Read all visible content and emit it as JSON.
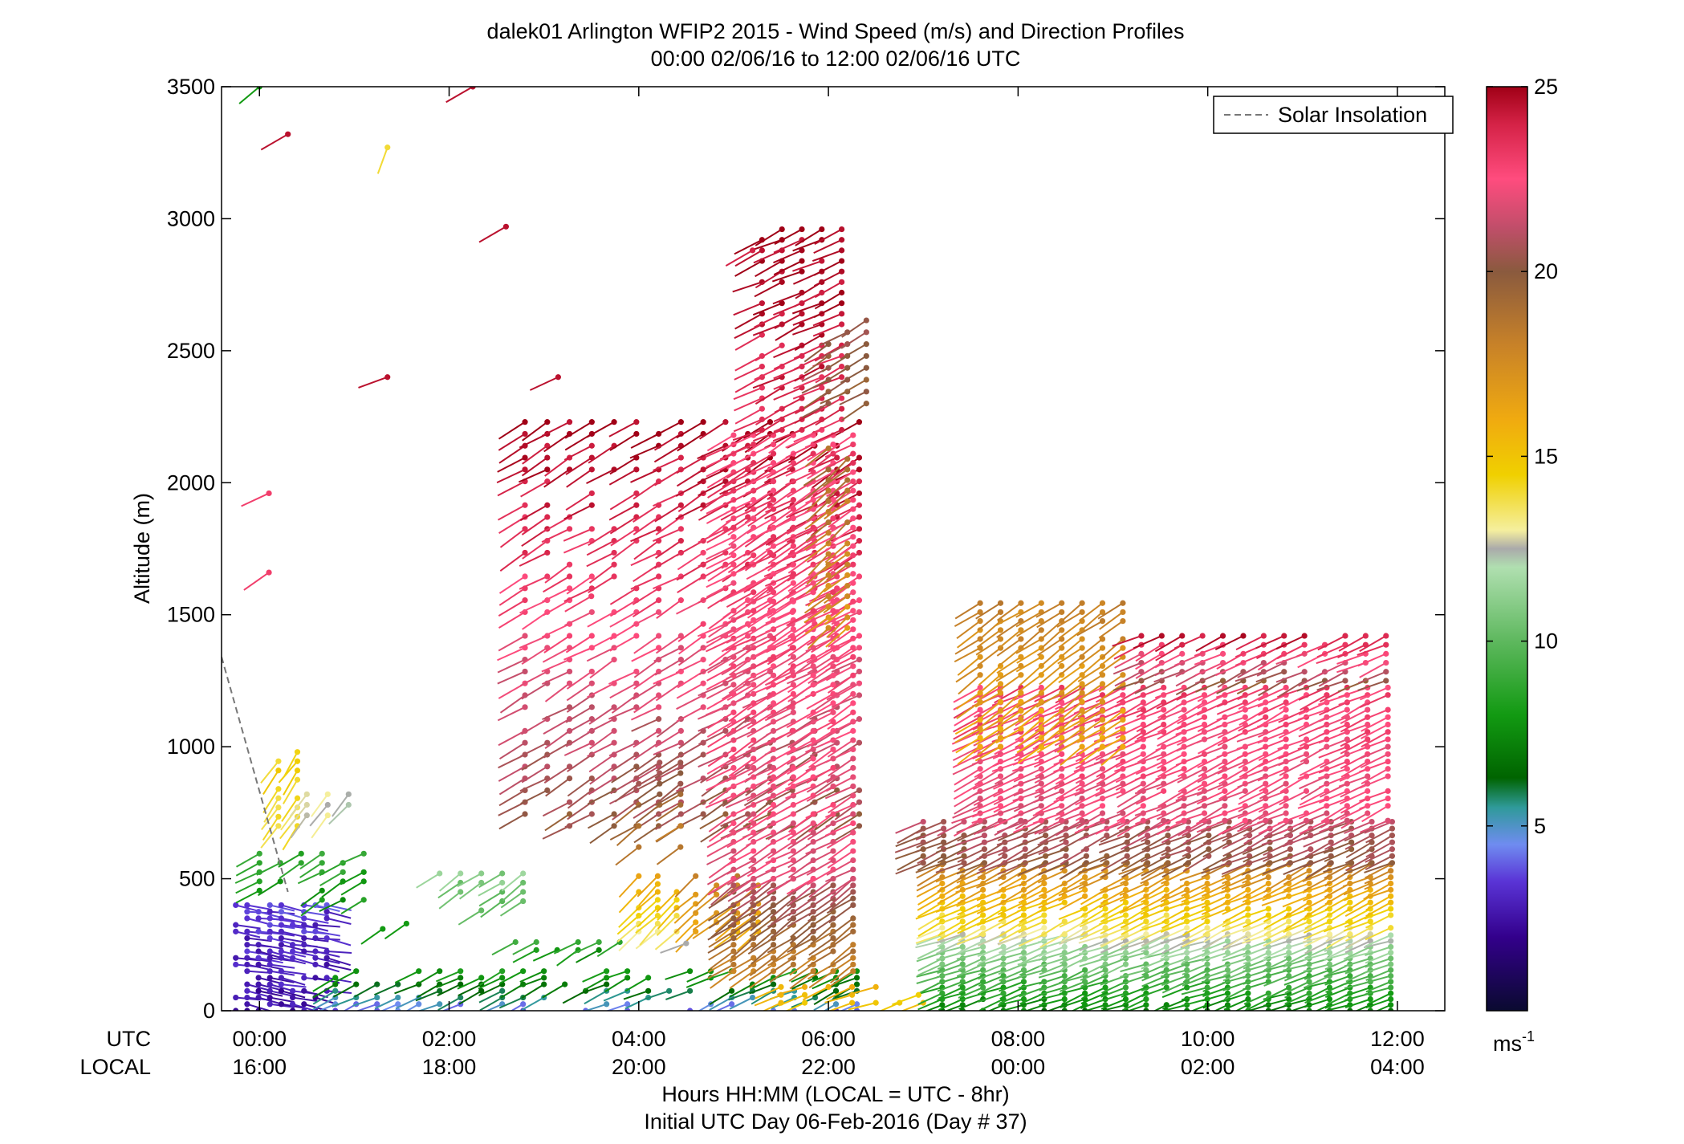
{
  "chart_data": {
    "type": "wind-barb profile",
    "title_line1": "dalek01 Arlington WFIP2 2015 - Wind Speed (m/s) and Direction Profiles",
    "title_line2": "00:00 02/06/16 to 12:00 02/06/16  UTC",
    "ylabel": "Altitude (m)",
    "ylim": [
      0,
      3500
    ],
    "yticks": [
      "0",
      "500",
      "1000",
      "1500",
      "2000",
      "2500",
      "3000",
      "3500"
    ],
    "ytick_values": [
      0,
      500,
      1000,
      1500,
      2000,
      2500,
      3000,
      3500
    ],
    "xlim_hours": [
      -0.4,
      12.5
    ],
    "xtick_values": [
      0,
      2,
      4,
      6,
      8,
      10,
      12
    ],
    "xticks_utc": [
      "00:00",
      "02:00",
      "04:00",
      "06:00",
      "08:00",
      "10:00",
      "12:00"
    ],
    "xticks_local": [
      "16:00",
      "18:00",
      "20:00",
      "22:00",
      "00:00",
      "02:00",
      "04:00"
    ],
    "row_label_utc": "UTC",
    "row_label_local": "LOCAL",
    "xlabel_line1": "Hours HH:MM  (LOCAL = UTC - 8hr)",
    "xlabel_line2": "Initial UTC Day 06-Feb-2016 (Day # 37)",
    "legend": {
      "label": "Solar Insolation",
      "style": "dashed gray",
      "placement": "top-right"
    },
    "colorbar": {
      "min": 0,
      "max": 25,
      "ticks": [
        "5",
        "10",
        "15",
        "20",
        "25"
      ],
      "tick_values": [
        5,
        10,
        15,
        20,
        25
      ],
      "unit_base": "ms",
      "unit_exp": "-1",
      "stops": [
        {
          "v": 0,
          "c": "#0a0a30"
        },
        {
          "v": 2,
          "c": "#33008c"
        },
        {
          "v": 3.5,
          "c": "#5a34d6"
        },
        {
          "v": 4.5,
          "c": "#6f8cf0"
        },
        {
          "v": 5.5,
          "c": "#2f9a9a"
        },
        {
          "v": 6.3,
          "c": "#006400"
        },
        {
          "v": 8,
          "c": "#129a12"
        },
        {
          "v": 10,
          "c": "#5eb85e"
        },
        {
          "v": 12,
          "c": "#b0dfb0"
        },
        {
          "v": 12.5,
          "c": "#aaaaaa"
        },
        {
          "v": 13,
          "c": "#f5ef9e"
        },
        {
          "v": 14.5,
          "c": "#f0d000"
        },
        {
          "v": 16,
          "c": "#f0aa10"
        },
        {
          "v": 18,
          "c": "#c88228"
        },
        {
          "v": 20,
          "c": "#8a5a3e"
        },
        {
          "v": 21.2,
          "c": "#c14e6a"
        },
        {
          "v": 22.5,
          "c": "#ff4c7e"
        },
        {
          "v": 24,
          "c": "#d42246"
        },
        {
          "v": 25,
          "c": "#a00016"
        }
      ]
    },
    "solar_insolation_line": {
      "points": [
        [
          -0.4,
          1340
        ],
        [
          0.3,
          450
        ]
      ]
    },
    "wind_segments": [
      {
        "t0": -0.25,
        "t1": 0.8,
        "h0": 0,
        "h1": 400,
        "dh": 25,
        "dt": 0.12,
        "v0": 2.5,
        "v1": 3.5,
        "dir": 100,
        "density": 0.7
      },
      {
        "t0": 0.8,
        "t1": 6.3,
        "h0": 0,
        "h1": 150,
        "dh": 25,
        "dt": 0.22,
        "v0": 4,
        "v1": 8,
        "dir": 245,
        "density": 0.6
      },
      {
        "t0": 0.0,
        "t1": 1.2,
        "h0": 420,
        "h1": 620,
        "dh": 35,
        "dt": 0.22,
        "v0": 8,
        "v1": 9,
        "dir": 240,
        "density": 0.5
      },
      {
        "t0": 0.2,
        "t1": 0.4,
        "h0": 700,
        "h1": 1010,
        "dh": 35,
        "dt": 0.2,
        "v0": 14,
        "v1": 14.5,
        "dir": 215,
        "density": 0.9
      },
      {
        "t0": 0.5,
        "t1": 1.1,
        "h0": 740,
        "h1": 830,
        "dh": 40,
        "dt": 0.22,
        "v0": 13,
        "v1": 12.5,
        "dir": 220,
        "density": 0.7
      },
      {
        "t0": 1.9,
        "t1": 2.9,
        "h0": 380,
        "h1": 520,
        "dh": 35,
        "dt": 0.22,
        "v0": 10,
        "v1": 11,
        "dir": 235,
        "density": 0.7
      },
      {
        "t0": 2.7,
        "t1": 4.0,
        "h0": 230,
        "h1": 260,
        "dh": 30,
        "dt": 0.22,
        "v0": 8,
        "v1": 9,
        "dir": 240,
        "density": 0.6
      },
      {
        "t0": 2.8,
        "t1": 6.4,
        "h0": 700,
        "h1": 2250,
        "dh": 45,
        "dt": 0.235,
        "v0": 20,
        "v1": 25,
        "dir": 240,
        "density": 0.75
      },
      {
        "t0": 4.0,
        "t1": 4.5,
        "h0": 300,
        "h1": 520,
        "dh": 30,
        "dt": 0.2,
        "v0": 13.5,
        "v1": 16,
        "dir": 225,
        "density": 0.85
      },
      {
        "t0": 4.0,
        "t1": 4.5,
        "h0": 620,
        "h1": 1000,
        "dh": 40,
        "dt": 0.22,
        "v0": 18,
        "v1": 21,
        "dir": 235,
        "density": 0.6
      },
      {
        "t0": 4.6,
        "t1": 5.3,
        "h0": 300,
        "h1": 520,
        "dh": 35,
        "dt": 0.22,
        "v0": 16,
        "v1": 18,
        "dir": 230,
        "density": 0.7
      },
      {
        "t0": 5.0,
        "t1": 6.3,
        "h0": 150,
        "h1": 500,
        "dh": 25,
        "dt": 0.21,
        "v0": 18,
        "v1": 21,
        "dir": 235,
        "density": 0.95
      },
      {
        "t0": 5.0,
        "t1": 6.3,
        "h0": 500,
        "h1": 2200,
        "dh": 35,
        "dt": 0.21,
        "v0": 22,
        "v1": 23,
        "dir": 240,
        "density": 0.95
      },
      {
        "t0": 5.3,
        "t1": 6.2,
        "h0": 2200,
        "h1": 2970,
        "dh": 40,
        "dt": 0.21,
        "v0": 23.5,
        "v1": 25,
        "dir": 245,
        "density": 0.9
      },
      {
        "t0": 6.0,
        "t1": 6.3,
        "h0": 1450,
        "h1": 2130,
        "dh": 40,
        "dt": 0.2,
        "v0": 17,
        "v1": 19,
        "dir": 230,
        "density": 0.9
      },
      {
        "t0": 6.0,
        "t1": 6.4,
        "h0": 2300,
        "h1": 2650,
        "dh": 45,
        "dt": 0.2,
        "v0": 20,
        "v1": 20,
        "dir": 240,
        "density": 0.7
      },
      {
        "t0": 5.5,
        "t1": 7.2,
        "h0": 30,
        "h1": 100,
        "dh": 30,
        "dt": 0.25,
        "v0": 15,
        "v1": 16,
        "dir": 250,
        "density": 0.7
      },
      {
        "t0": 7.2,
        "t1": 12.0,
        "h0": 0,
        "h1": 290,
        "dh": 22,
        "dt": 0.215,
        "v0": 7,
        "v1": 12.5,
        "dir": 250,
        "density": 0.95
      },
      {
        "t0": 7.2,
        "t1": 12.0,
        "h0": 290,
        "h1": 560,
        "dh": 24,
        "dt": 0.215,
        "v0": 13,
        "v1": 18,
        "dir": 245,
        "density": 0.95
      },
      {
        "t0": 7.0,
        "t1": 12.0,
        "h0": 560,
        "h1": 720,
        "dh": 26,
        "dt": 0.215,
        "v0": 20,
        "v1": 21,
        "dir": 245,
        "density": 0.95
      },
      {
        "t0": 7.6,
        "t1": 12.0,
        "h0": 720,
        "h1": 1250,
        "dh": 28,
        "dt": 0.215,
        "v0": 22,
        "v1": 23,
        "dir": 245,
        "density": 0.95
      },
      {
        "t0": 7.6,
        "t1": 9.3,
        "h0": 1000,
        "h1": 1550,
        "dh": 34,
        "dt": 0.215,
        "v0": 16,
        "v1": 18,
        "dir": 235,
        "density": 0.9
      },
      {
        "t0": 9.3,
        "t1": 12.0,
        "h0": 1250,
        "h1": 1450,
        "dh": 34,
        "dt": 0.215,
        "v0": 20,
        "v1": 25,
        "dir": 245,
        "density": 0.9
      }
    ],
    "wind_singles": [
      {
        "t": 0.0,
        "h": 3500,
        "v": 8,
        "dir": 230
      },
      {
        "t": 0.3,
        "h": 3320,
        "v": 24.5,
        "dir": 240
      },
      {
        "t": 0.1,
        "h": 1960,
        "v": 23,
        "dir": 245
      },
      {
        "t": 0.1,
        "h": 1660,
        "v": 23,
        "dir": 235
      },
      {
        "t": 1.35,
        "h": 2400,
        "v": 24.5,
        "dir": 250
      },
      {
        "t": 1.35,
        "h": 3270,
        "v": 14,
        "dir": 200
      },
      {
        "t": 2.6,
        "h": 2970,
        "v": 24.5,
        "dir": 240
      },
      {
        "t": 2.25,
        "h": 3500,
        "v": 24.5,
        "dir": 240
      },
      {
        "t": 3.15,
        "h": 2400,
        "v": 24.5,
        "dir": 245
      },
      {
        "t": 3.5,
        "h": 1570,
        "v": 23,
        "dir": 240
      },
      {
        "t": 5.2,
        "h": 2880,
        "v": 24,
        "dir": 240
      },
      {
        "t": 1.55,
        "h": 330,
        "v": 8,
        "dir": 235
      },
      {
        "t": 1.3,
        "h": 310,
        "v": 8,
        "dir": 235
      },
      {
        "t": 4.5,
        "h": 255,
        "v": 12.5,
        "dir": 250
      },
      {
        "t": 6.95,
        "h": 60,
        "v": 14.5,
        "dir": 250
      }
    ]
  }
}
